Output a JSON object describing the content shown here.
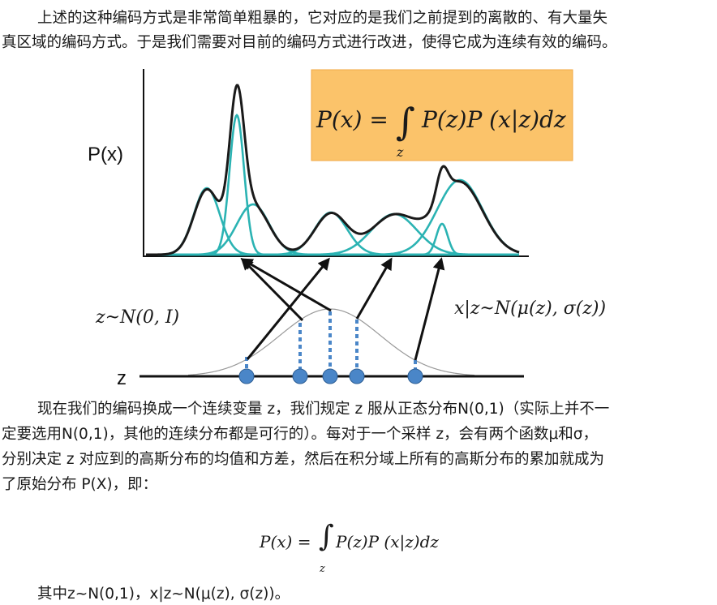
{
  "intro": {
    "line1": "上述的这种编码方式是非常简单粗暴的，它对应的是我们之前提到的离散的、有大量失",
    "line2": "真区域的编码方式。于是我们需要对目前的编码方式进行改进，使得它成为连续有效的编码。"
  },
  "figure": {
    "y_axis_label": "P(x)",
    "box_formula": "P(x) = ∫ P(z)P (x|z)dz",
    "box_formula_lhs": "P(x) =",
    "box_formula_rhs": "P(z)P (x|z)dz",
    "box_integral": "∫",
    "box_subscript": "z",
    "prior_label": "z~N(0, I)",
    "conditional_label": "x|z~N(μ(z), σ(z))",
    "z_axis_label": "z",
    "colors": {
      "mixture": "#1a1a1a",
      "gaussian": "#2bb3b3",
      "arrow": "#111111",
      "sample": "#4a86c8",
      "formula_box": "#fbc36a"
    }
  },
  "body": {
    "line1": "现在我们的编码换成一个连续变量 z，我们规定 z 服从正态分布N(0,1)（实际上并不一",
    "line2": "定要选用N(0,1)，其他的连续分布都是可行的）。每对于一个采样 z，会有两个函数μ和σ，",
    "line3": "分别决定 z 对应到的高斯分布的均值和方差，然后在积分域上所有的高斯分布的累加就成为",
    "line4": "了原始分布 P(X)，即："
  },
  "equation": {
    "lhs": "P(x) =",
    "integral": "∫",
    "rhs": "P(z)P (x|z)dz",
    "subscript": "z"
  },
  "final": {
    "text": "其中z~N(0,1)，x|z~N(μ(z), σ(z))。"
  }
}
